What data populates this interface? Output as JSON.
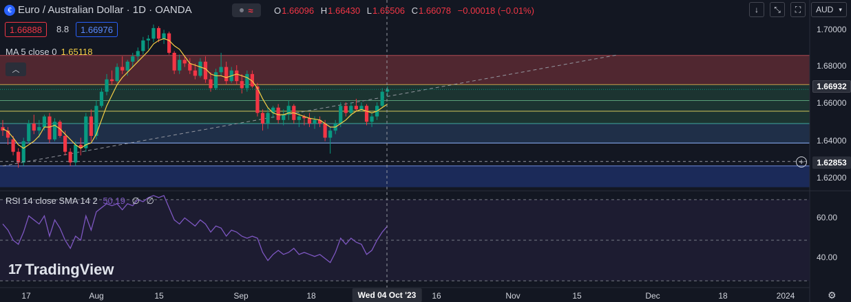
{
  "header": {
    "title": "Euro / Australian Dollar · 1D · OANDA",
    "icon": "currency-flags-icon",
    "ohlc": [
      {
        "k": "O",
        "v": "1.66096"
      },
      {
        "k": "H",
        "v": "1.66430"
      },
      {
        "k": "L",
        "v": "1.65506"
      },
      {
        "k": "C",
        "v": "1.66078"
      },
      {
        "k": "",
        "v": "−0.00018 (−0.01%)"
      }
    ],
    "colors": {
      "down": "#f23645",
      "up": "#089981",
      "ma": "#f7d046",
      "rsi": "#7e57c2"
    }
  },
  "quote": {
    "bid": "1.66888",
    "spread": "8.8",
    "ask": "1.66976"
  },
  "ma": {
    "label": "MA 5 close 0",
    "value": "1.65118"
  },
  "rsi": {
    "label": "RSI 14 close SMA 14 2",
    "value": "50.19",
    "na1": "∅",
    "na2": "∅"
  },
  "toolbar": {
    "currency": "AUD",
    "icons": [
      "arrow-down-icon",
      "collapse-icon",
      "fullscreen-icon"
    ]
  },
  "price_axis": [
    "1.70000",
    "1.68000",
    "1.66000",
    "1.64000",
    "1.62000"
  ],
  "price_tags": {
    "last": "1.66932",
    "crosshair": "1.62853"
  },
  "rsi_axis": [
    "60.00",
    "40.00"
  ],
  "time_axis": [
    "17",
    "Aug",
    "15",
    "Sep",
    "18",
    "16",
    "Nov",
    "15",
    "Dec",
    "18",
    "2024"
  ],
  "crosshair_date": "Wed 04 Oct '23",
  "logo": "TradingView",
  "chart_data": {
    "type": "candlestick",
    "symbol": "EURAUD",
    "timeframe": "1D",
    "price_range": [
      1.6135,
      1.709
    ],
    "rsi_range": [
      27,
      73
    ],
    "candles": [
      [
        1.648,
        1.652,
        1.643,
        1.646
      ],
      [
        1.646,
        1.648,
        1.638,
        1.642
      ],
      [
        1.641,
        1.643,
        1.632,
        1.634
      ],
      [
        1.634,
        1.636,
        1.625,
        1.628
      ],
      [
        1.628,
        1.642,
        1.626,
        1.64
      ],
      [
        1.64,
        1.652,
        1.639,
        1.65
      ],
      [
        1.65,
        1.655,
        1.644,
        1.646
      ],
      [
        1.646,
        1.652,
        1.642,
        1.648
      ],
      [
        1.648,
        1.655,
        1.646,
        1.654
      ],
      [
        1.654,
        1.656,
        1.639,
        1.641
      ],
      [
        1.641,
        1.653,
        1.64,
        1.651
      ],
      [
        1.651,
        1.652,
        1.642,
        1.643
      ],
      [
        1.643,
        1.646,
        1.632,
        1.634
      ],
      [
        1.634,
        1.636,
        1.626,
        1.628
      ],
      [
        1.628,
        1.64,
        1.626,
        1.638
      ],
      [
        1.638,
        1.642,
        1.632,
        1.636
      ],
      [
        1.636,
        1.656,
        1.634,
        1.654
      ],
      [
        1.654,
        1.658,
        1.64,
        1.643
      ],
      [
        1.643,
        1.663,
        1.641,
        1.66
      ],
      [
        1.66,
        1.67,
        1.659,
        1.668
      ],
      [
        1.668,
        1.678,
        1.666,
        1.675
      ],
      [
        1.675,
        1.68,
        1.672,
        1.674
      ],
      [
        1.674,
        1.684,
        1.673,
        1.682
      ],
      [
        1.682,
        1.688,
        1.678,
        1.68
      ],
      [
        1.68,
        1.686,
        1.677,
        1.685
      ],
      [
        1.685,
        1.69,
        1.682,
        1.688
      ],
      [
        1.688,
        1.693,
        1.685,
        1.691
      ],
      [
        1.691,
        1.699,
        1.689,
        1.697
      ],
      [
        1.697,
        1.7,
        1.692,
        1.698
      ],
      [
        1.698,
        1.706,
        1.696,
        1.704
      ],
      [
        1.704,
        1.705,
        1.696,
        1.698
      ],
      [
        1.698,
        1.703,
        1.695,
        1.701
      ],
      [
        1.701,
        1.702,
        1.689,
        1.69
      ],
      [
        1.69,
        1.691,
        1.678,
        1.68
      ],
      [
        1.68,
        1.689,
        1.678,
        1.686
      ],
      [
        1.686,
        1.688,
        1.682,
        1.684
      ],
      [
        1.684,
        1.687,
        1.678,
        1.68
      ],
      [
        1.68,
        1.684,
        1.675,
        1.677
      ],
      [
        1.677,
        1.687,
        1.676,
        1.685
      ],
      [
        1.685,
        1.688,
        1.673,
        1.675
      ],
      [
        1.675,
        1.679,
        1.668,
        1.67
      ],
      [
        1.67,
        1.681,
        1.669,
        1.679
      ],
      [
        1.679,
        1.69,
        1.677,
        1.682
      ],
      [
        1.682,
        1.685,
        1.672,
        1.674
      ],
      [
        1.674,
        1.682,
        1.673,
        1.68
      ],
      [
        1.68,
        1.683,
        1.672,
        1.674
      ],
      [
        1.674,
        1.678,
        1.667,
        1.67
      ],
      [
        1.67,
        1.68,
        1.668,
        1.678
      ],
      [
        1.678,
        1.68,
        1.67,
        1.671
      ],
      [
        1.671,
        1.673,
        1.654,
        1.656
      ],
      [
        1.656,
        1.658,
        1.646,
        1.65
      ],
      [
        1.65,
        1.659,
        1.647,
        1.656
      ],
      [
        1.656,
        1.66,
        1.653,
        1.659
      ],
      [
        1.659,
        1.661,
        1.65,
        1.652
      ],
      [
        1.652,
        1.658,
        1.649,
        1.655
      ],
      [
        1.655,
        1.663,
        1.652,
        1.66
      ],
      [
        1.66,
        1.661,
        1.65,
        1.652
      ],
      [
        1.652,
        1.656,
        1.648,
        1.654
      ],
      [
        1.654,
        1.655,
        1.649,
        1.653
      ],
      [
        1.653,
        1.656,
        1.648,
        1.65
      ],
      [
        1.65,
        1.654,
        1.647,
        1.652
      ],
      [
        1.652,
        1.654,
        1.648,
        1.65
      ],
      [
        1.65,
        1.652,
        1.64,
        1.642
      ],
      [
        1.642,
        1.648,
        1.633,
        1.646
      ],
      [
        1.646,
        1.652,
        1.644,
        1.65
      ],
      [
        1.65,
        1.662,
        1.648,
        1.66
      ],
      [
        1.66,
        1.662,
        1.654,
        1.656
      ],
      [
        1.656,
        1.662,
        1.654,
        1.66
      ],
      [
        1.66,
        1.664,
        1.657,
        1.658
      ],
      [
        1.658,
        1.662,
        1.657,
        1.66
      ],
      [
        1.66,
        1.661,
        1.649,
        1.651
      ],
      [
        1.651,
        1.656,
        1.648,
        1.654
      ],
      [
        1.654,
        1.662,
        1.652,
        1.66
      ],
      [
        1.66,
        1.67,
        1.659,
        1.668
      ],
      [
        1.668,
        1.671,
        1.665,
        1.6693
      ]
    ],
    "ma5": [
      1.647,
      1.6455,
      1.642,
      1.638,
      1.636,
      1.638,
      1.64,
      1.643,
      1.648,
      1.648,
      1.649,
      1.647,
      1.644,
      1.641,
      1.638,
      1.636,
      1.638,
      1.639,
      1.644,
      1.652,
      1.66,
      1.666,
      1.672,
      1.676,
      1.679,
      1.682,
      1.685,
      1.688,
      1.691,
      1.695,
      1.697,
      1.698,
      1.697,
      1.694,
      1.692,
      1.688,
      1.684,
      1.683,
      1.682,
      1.681,
      1.678,
      1.677,
      1.677,
      1.676,
      1.677,
      1.678,
      1.677,
      1.676,
      1.674,
      1.67,
      1.664,
      1.659,
      1.656,
      1.655,
      1.655,
      1.656,
      1.656,
      1.655,
      1.654,
      1.653,
      1.6525,
      1.652,
      1.65,
      1.648,
      1.648,
      1.65,
      1.652,
      1.655,
      1.657,
      1.658,
      1.657,
      1.656,
      1.657,
      1.659,
      1.661
    ],
    "rsi": [
      58,
      55,
      50,
      48,
      54,
      62,
      60,
      58,
      62,
      52,
      60,
      56,
      50,
      46,
      52,
      50,
      62,
      55,
      64,
      66,
      68,
      67,
      68,
      65,
      68,
      67,
      70,
      69,
      71,
      72,
      71,
      72,
      66,
      60,
      58,
      61,
      59,
      57,
      60,
      58,
      54,
      57,
      56,
      52,
      55,
      54,
      52,
      51,
      52,
      51,
      44,
      40,
      43,
      45,
      43,
      44,
      46,
      43,
      44,
      43,
      42,
      43,
      41,
      39,
      44,
      51,
      48,
      51,
      49,
      48,
      43,
      45,
      50,
      54,
      57
    ],
    "rsi_ma": [
      55,
      55,
      55,
      55,
      55,
      55,
      55,
      55,
      55,
      56,
      56,
      56,
      56,
      56,
      56,
      56,
      57,
      57,
      58,
      58,
      59,
      59,
      60,
      60,
      60,
      61,
      62,
      62,
      63,
      64,
      64,
      65,
      64,
      64,
      63,
      63,
      62,
      62,
      61,
      61,
      60,
      59,
      58,
      57,
      56,
      55,
      54,
      53,
      52,
      51,
      50,
      49,
      48,
      47,
      47,
      46,
      46,
      46,
      45,
      45,
      45,
      45,
      45,
      44,
      44,
      45,
      45,
      45,
      46,
      46,
      46,
      46,
      47,
      48,
      49
    ],
    "rsi_levels": [
      70,
      50,
      30
    ],
    "zones": [
      {
        "from": 1.672,
        "to": 1.6885,
        "color": "#5c2a33"
      },
      {
        "from": 1.65,
        "to": 1.672,
        "color": "#1f3a34"
      },
      {
        "from": 1.639,
        "to": 1.65,
        "color": "#22344f"
      },
      {
        "from": 1.614,
        "to": 1.626,
        "color": "#1d2e63"
      }
    ],
    "levels": [
      {
        "price": 1.672,
        "color": "#c9a14a"
      },
      {
        "price": 1.663,
        "color": "#5aa27a"
      },
      {
        "price": 1.657,
        "color": "#d4c75a"
      },
      {
        "price": 1.65,
        "color": "#3fa9a0"
      },
      {
        "price": 1.639,
        "color": "#8fb5ff"
      },
      {
        "price": 1.626,
        "color": "#6f8ce0"
      }
    ],
    "crosshair_price": 1.62853,
    "trendline": {
      "from": [
        0,
        1.626
      ],
      "to": [
        118,
        1.6887
      ]
    }
  }
}
